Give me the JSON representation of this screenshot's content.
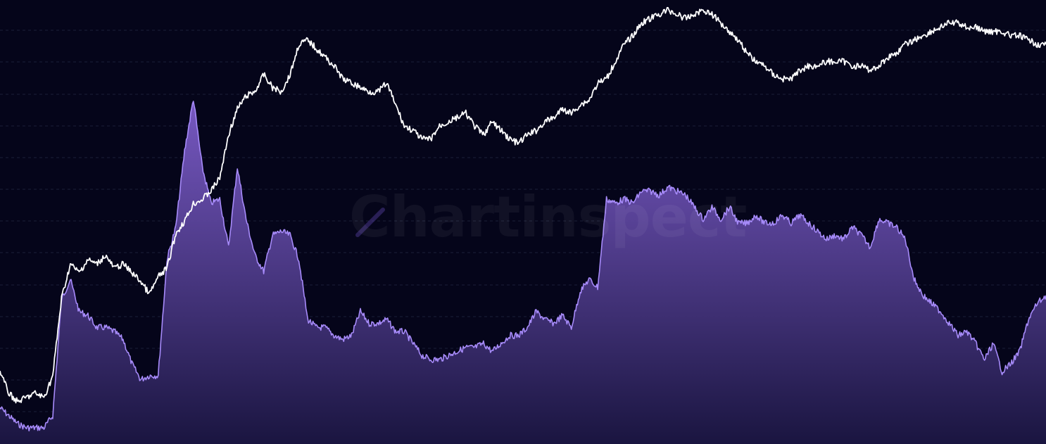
{
  "watermark": {
    "text": "Chartinspect"
  },
  "colors": {
    "background": "#05051a",
    "price_line": "#ffffff",
    "metric_line": "#a78bfa",
    "metric_fill_top": "#7c5cc9",
    "grid": "#1c1f38"
  },
  "chart_data": {
    "type": "line",
    "title": "",
    "xlabel": "",
    "ylabel": "",
    "grid": true,
    "legend": "none",
    "x_count": 120,
    "series": [
      {
        "style": "line",
        "color": "#ffffff",
        "ylim": [
          0,
          100
        ],
        "values": [
          15,
          10,
          8,
          9,
          10,
          9,
          14,
          32,
          40,
          38,
          41,
          40,
          42,
          39,
          40,
          38,
          36,
          33,
          37,
          39,
          47,
          50,
          54,
          55,
          57,
          60,
          70,
          76,
          79,
          80,
          84,
          81,
          80,
          84,
          91,
          92,
          90,
          88,
          86,
          83,
          82,
          81,
          80,
          80,
          82,
          77,
          72,
          71,
          69,
          69,
          72,
          73,
          74,
          75,
          72,
          70,
          73,
          71,
          69,
          68,
          70,
          71,
          73,
          74,
          76,
          75,
          77,
          78,
          82,
          83,
          87,
          91,
          93,
          96,
          97,
          98,
          99,
          98,
          97,
          98,
          99,
          98,
          96,
          94,
          92,
          89,
          87,
          86,
          84,
          83,
          83,
          85,
          86,
          86,
          87,
          87,
          87,
          86,
          86,
          85,
          86,
          88,
          89,
          91,
          92,
          93,
          94,
          95,
          96,
          96,
          95,
          95,
          94,
          94,
          94,
          93,
          93,
          92,
          91,
          91
        ]
      },
      {
        "style": "area",
        "color": "#a78bfa",
        "ylim": [
          0,
          100
        ],
        "values": [
          8,
          6,
          4,
          3,
          3,
          3,
          6,
          35,
          40,
          32,
          31,
          28,
          28,
          27,
          25,
          19,
          15,
          16,
          16,
          45,
          53,
          72,
          85,
          68,
          59,
          60,
          48,
          68,
          55,
          46,
          42,
          51,
          52,
          51,
          45,
          30,
          28,
          28,
          26,
          25,
          26,
          32,
          29,
          29,
          30,
          27,
          27,
          24,
          21,
          20,
          20,
          21,
          22,
          23,
          23,
          24,
          22,
          24,
          26,
          26,
          28,
          32,
          30,
          29,
          31,
          28,
          37,
          40,
          38,
          60,
          59,
          60,
          59,
          62,
          62,
          61,
          63,
          62,
          61,
          58,
          55,
          58,
          55,
          58,
          54,
          54,
          56,
          54,
          54,
          56,
          54,
          56,
          54,
          52,
          50,
          51,
          50,
          53,
          51,
          48,
          55,
          54,
          53,
          50,
          40,
          36,
          34,
          32,
          29,
          26,
          27,
          24,
          20,
          24,
          17,
          19,
          22,
          30,
          34,
          36
        ]
      }
    ]
  }
}
